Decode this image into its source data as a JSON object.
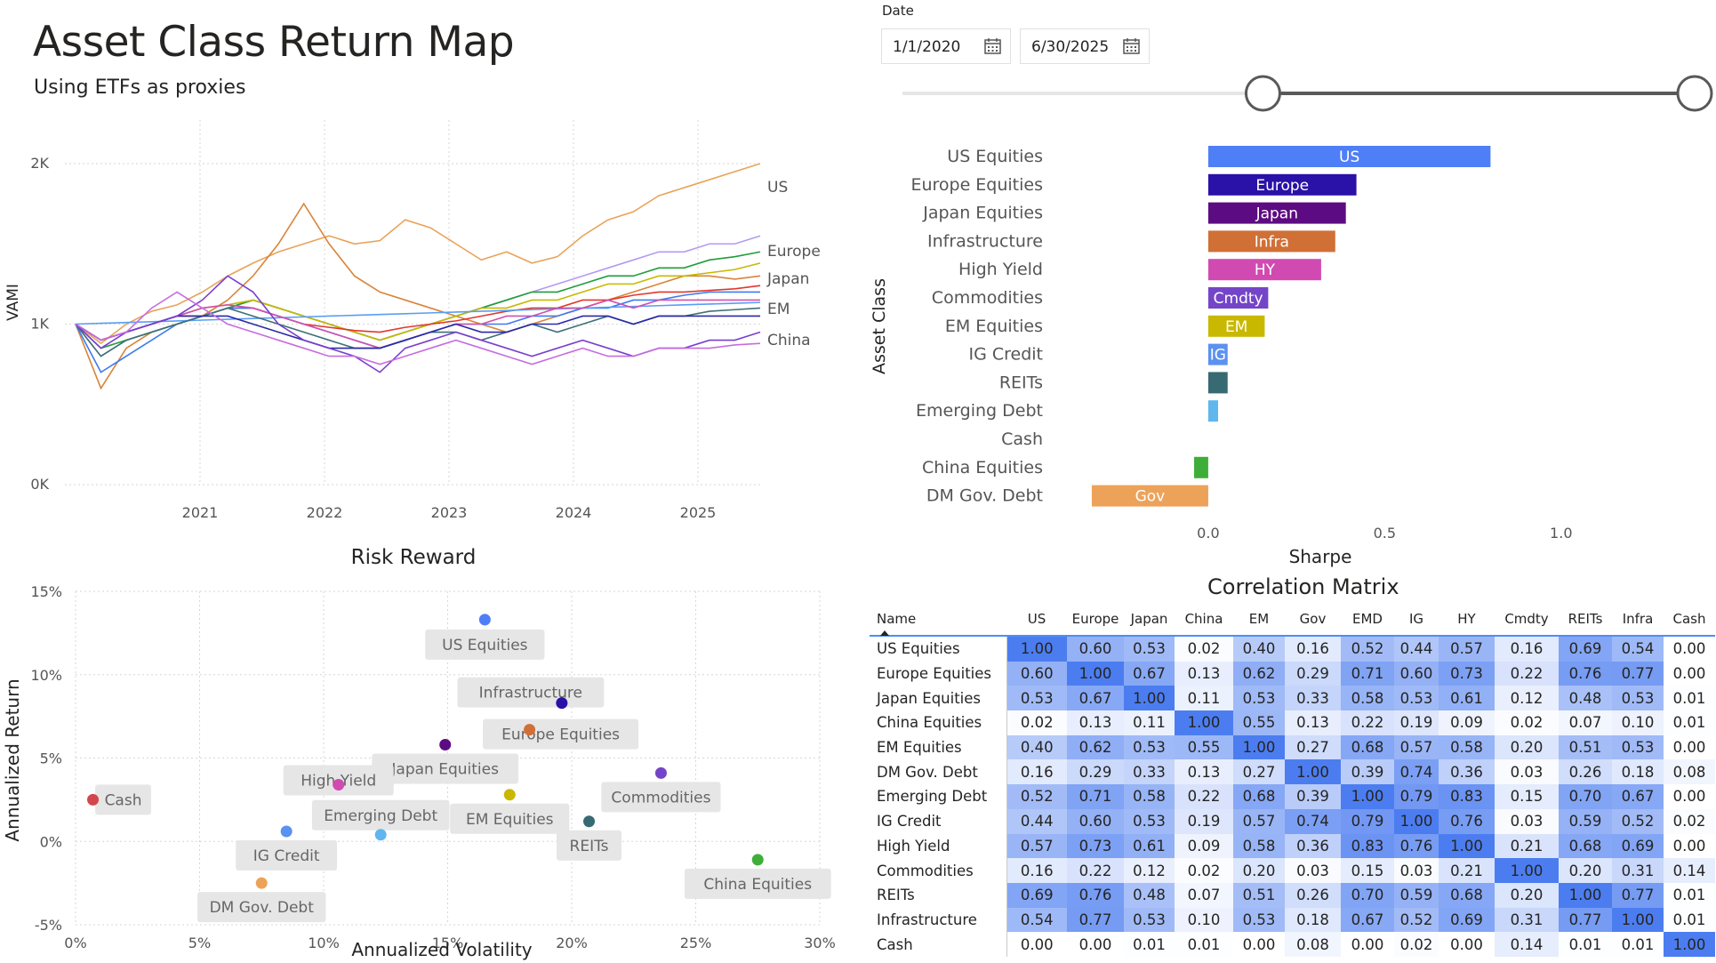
{
  "header": {
    "title": "Asset Class Return Map",
    "subtitle": "Using ETFs as proxies"
  },
  "date_filter": {
    "label": "Date",
    "start": "1/1/2020",
    "end": "6/30/2025",
    "icon": "calendar-icon",
    "slider_start_fraction": 0.45,
    "slider_end_fraction": 1.0
  },
  "vami_chart": {
    "type": "line",
    "ylabel": "VAMI",
    "yticks": [
      "0K",
      "1K",
      "2K"
    ],
    "xticks": [
      "2021",
      "2022",
      "2023",
      "2024",
      "2025"
    ],
    "ylim": [
      0,
      2000
    ],
    "x_range": [
      2020.0,
      2025.5
    ],
    "end_labels": [
      "US",
      "Europe",
      "Japan",
      "EM",
      "China"
    ],
    "series": [
      {
        "color": "#e8a45a",
        "values": [
          1000,
          880,
          1000,
          1080,
          1120,
          1200,
          1300,
          1380,
          1450,
          1500,
          1550,
          1500,
          1520,
          1650,
          1600,
          1500,
          1400,
          1450,
          1380,
          1420,
          1550,
          1650,
          1700,
          1800,
          1850,
          1900,
          1950,
          2000
        ]
      },
      {
        "color": "#d9843b",
        "values": [
          1000,
          600,
          850,
          950,
          1000,
          1050,
          1150,
          1300,
          1500,
          1750,
          1500,
          1300,
          1200,
          1150,
          1100,
          1050,
          1000,
          950,
          1000,
          1050,
          1100,
          1150,
          1200,
          1250,
          1300,
          1300,
          1280,
          1300
        ]
      },
      {
        "color": "#b49bf2",
        "values": [
          1000,
          800,
          900,
          950,
          1000,
          1050,
          1100,
          1150,
          1100,
          1050,
          1000,
          950,
          900,
          950,
          1000,
          1050,
          1100,
          1150,
          1200,
          1250,
          1300,
          1350,
          1400,
          1450,
          1450,
          1500,
          1500,
          1550
        ]
      },
      {
        "color": "#1f9e3a",
        "values": [
          1000,
          850,
          900,
          950,
          1000,
          1050,
          1100,
          1150,
          1100,
          1050,
          1000,
          950,
          900,
          950,
          1000,
          1050,
          1100,
          1150,
          1200,
          1200,
          1250,
          1300,
          1300,
          1350,
          1350,
          1400,
          1420,
          1450
        ]
      },
      {
        "color": "#c9b800",
        "values": [
          1000,
          900,
          950,
          1000,
          1050,
          1100,
          1120,
          1150,
          1100,
          1050,
          1000,
          950,
          900,
          950,
          1000,
          1050,
          1100,
          1100,
          1150,
          1150,
          1200,
          1250,
          1250,
          1300,
          1300,
          1320,
          1340,
          1380
        ]
      },
      {
        "color": "#e2372d",
        "values": [
          1000,
          900,
          950,
          1000,
          1050,
          1050,
          1100,
          1100,
          1050,
          1000,
          980,
          960,
          950,
          980,
          1000,
          1020,
          1050,
          1080,
          1100,
          1100,
          1150,
          1150,
          1180,
          1200,
          1200,
          1210,
          1220,
          1240
        ]
      },
      {
        "color": "#3e7af0",
        "values": [
          1000,
          700,
          800,
          900,
          1000,
          1050,
          1100,
          1100,
          1050,
          1000,
          950,
          900,
          850,
          900,
          950,
          1000,
          1000,
          1000,
          1050,
          1050,
          1100,
          1100,
          1150,
          1150,
          1180,
          1200,
          1200,
          1200
        ]
      },
      {
        "color": "#5a9df5",
        "values": [
          1000,
          1005,
          1010,
          1015,
          1020,
          1025,
          1030,
          1035,
          1040,
          1045,
          1050,
          1055,
          1060,
          1065,
          1070,
          1075,
          1080,
          1085,
          1090,
          1095,
          1100,
          1105,
          1110,
          1115,
          1120,
          1125,
          1130,
          1135
        ]
      },
      {
        "color": "#d24fb0",
        "values": [
          1000,
          900,
          950,
          1000,
          1050,
          1100,
          1120,
          1100,
          1050,
          1000,
          950,
          900,
          850,
          900,
          950,
          1000,
          1000,
          1050,
          1050,
          1100,
          1100,
          1150,
          1100,
          1150,
          1150,
          1150,
          1150,
          1150
        ]
      },
      {
        "color": "#3e6f75",
        "values": [
          1000,
          800,
          900,
          950,
          1000,
          1050,
          1100,
          1050,
          1000,
          950,
          900,
          850,
          850,
          900,
          950,
          950,
          900,
          950,
          1000,
          950,
          1000,
          1050,
          1000,
          1050,
          1050,
          1080,
          1090,
          1100
        ]
      },
      {
        "color": "#2a2aa8",
        "values": [
          1000,
          900,
          950,
          1000,
          1050,
          1050,
          1050,
          1000,
          950,
          900,
          850,
          850,
          850,
          900,
          950,
          1000,
          950,
          950,
          1000,
          1000,
          1050,
          1050,
          1000,
          1050,
          1050,
          1050,
          1050,
          1050
        ]
      },
      {
        "color": "#7a3fcf",
        "values": [
          1000,
          850,
          950,
          1000,
          1050,
          1150,
          1300,
          1200,
          1000,
          900,
          850,
          800,
          700,
          850,
          900,
          950,
          900,
          850,
          800,
          850,
          900,
          850,
          800,
          850,
          850,
          900,
          900,
          950
        ]
      },
      {
        "color": "#c66de0",
        "values": [
          1000,
          900,
          950,
          1100,
          1200,
          1100,
          1000,
          950,
          900,
          850,
          800,
          800,
          750,
          800,
          850,
          900,
          850,
          800,
          750,
          800,
          850,
          800,
          800,
          850,
          850,
          850,
          870,
          880
        ]
      }
    ]
  },
  "sharpe_chart": {
    "type": "bar",
    "ylabel": "Asset Class",
    "xlabel": "Sharpe",
    "xlim": [
      -0.35,
      1.25
    ],
    "xticks": [
      "0.0",
      "0.5",
      "1.0"
    ],
    "xtick_values": [
      0,
      0.5,
      1.0
    ],
    "bars": [
      {
        "category": "US Equities",
        "value": 0.8,
        "label": "US",
        "color": "#4f7ff7"
      },
      {
        "category": "Europe Equities",
        "value": 0.42,
        "label": "Europe",
        "color": "#2a11a8"
      },
      {
        "category": "Japan Equities",
        "value": 0.39,
        "label": "Japan",
        "color": "#5d0b82"
      },
      {
        "category": "Infrastructure",
        "value": 0.36,
        "label": "Infra",
        "color": "#d06f36"
      },
      {
        "category": "High Yield",
        "value": 0.32,
        "label": "HY",
        "color": "#d14ab2"
      },
      {
        "category": "Commodities",
        "value": 0.17,
        "label": "Cmdty",
        "color": "#7445c8"
      },
      {
        "category": "EM Equities",
        "value": 0.16,
        "label": "EM",
        "color": "#c9b800"
      },
      {
        "category": "IG Credit",
        "value": 0.055,
        "label": "IG",
        "color": "#5b91f0"
      },
      {
        "category": "REITs",
        "value": 0.055,
        "label": "",
        "color": "#376a72"
      },
      {
        "category": "Emerging Debt",
        "value": 0.028,
        "label": "",
        "color": "#5fb7ee"
      },
      {
        "category": "Cash",
        "value": 0.0,
        "label": "",
        "color": "#999999"
      },
      {
        "category": "China Equities",
        "value": -0.04,
        "label": "",
        "color": "#3fae38"
      },
      {
        "category": "DM Gov. Debt",
        "value": -0.33,
        "label": "Gov",
        "color": "#eda259"
      }
    ]
  },
  "risk_reward": {
    "type": "scatter",
    "title": "Risk Reward",
    "xlabel": "Annualized Volatility",
    "ylabel": "Annualized Return",
    "xlim": [
      0,
      30
    ],
    "ylim": [
      -5,
      15
    ],
    "xticks": [
      "0%",
      "5%",
      "10%",
      "15%",
      "20%",
      "25%",
      "30%"
    ],
    "yticks": [
      "-5%",
      "0%",
      "5%",
      "10%",
      "15%"
    ],
    "points": [
      {
        "name": "US Equities",
        "x": 16.5,
        "y": 13.3,
        "color": "#4f7ff7"
      },
      {
        "name": "Infrastructure",
        "x": 19.6,
        "y": 8.3,
        "color": "#2a11a8"
      },
      {
        "name": "Europe Equities",
        "x": 18.3,
        "y": 6.7,
        "color": "#d06f36"
      },
      {
        "name": "Japan Equities",
        "x": 14.9,
        "y": 5.8,
        "color": "#5d0b82"
      },
      {
        "name": "High Yield",
        "x": 10.6,
        "y": 3.4,
        "color": "#d14ab2"
      },
      {
        "name": "Commodities",
        "x": 23.6,
        "y": 4.1,
        "color": "#7445c8"
      },
      {
        "name": "Cash",
        "x": 0.7,
        "y": 2.5,
        "color": "#d3464c"
      },
      {
        "name": "EM Equities",
        "x": 17.5,
        "y": 2.8,
        "color": "#c9b800"
      },
      {
        "name": "Emerging Debt",
        "x": 12.3,
        "y": 0.4,
        "color": "#5fb7ee"
      },
      {
        "name": "IG Credit",
        "x": 8.5,
        "y": 0.6,
        "color": "#5b91f0"
      },
      {
        "name": "REITs",
        "x": 20.7,
        "y": 1.2,
        "color": "#376a72"
      },
      {
        "name": "China Equities",
        "x": 27.5,
        "y": -1.1,
        "color": "#3fae38"
      },
      {
        "name": "DM Gov. Debt",
        "x": 7.5,
        "y": -2.5,
        "color": "#eda259"
      }
    ]
  },
  "correlation": {
    "type": "table",
    "title": "Correlation Matrix",
    "name_header": "Name",
    "columns": [
      "US",
      "Europe",
      "Japan",
      "China",
      "EM",
      "Gov",
      "EMD",
      "IG",
      "HY",
      "Cmdty",
      "REITs",
      "Infra",
      "Cash"
    ],
    "rows": [
      {
        "name": "US Equities",
        "values": [
          "1.00",
          "0.60",
          "0.53",
          "0.02",
          "0.40",
          "0.16",
          "0.52",
          "0.44",
          "0.57",
          "0.16",
          "0.69",
          "0.54",
          "0.00"
        ]
      },
      {
        "name": "Europe Equities",
        "values": [
          "0.60",
          "1.00",
          "0.67",
          "0.13",
          "0.62",
          "0.29",
          "0.71",
          "0.60",
          "0.73",
          "0.22",
          "0.76",
          "0.77",
          "0.00"
        ]
      },
      {
        "name": "Japan Equities",
        "values": [
          "0.53",
          "0.67",
          "1.00",
          "0.11",
          "0.53",
          "0.33",
          "0.58",
          "0.53",
          "0.61",
          "0.12",
          "0.48",
          "0.53",
          "0.01"
        ]
      },
      {
        "name": "China Equities",
        "values": [
          "0.02",
          "0.13",
          "0.11",
          "1.00",
          "0.55",
          "0.13",
          "0.22",
          "0.19",
          "0.09",
          "0.02",
          "0.07",
          "0.10",
          "0.01"
        ]
      },
      {
        "name": "EM Equities",
        "values": [
          "0.40",
          "0.62",
          "0.53",
          "0.55",
          "1.00",
          "0.27",
          "0.68",
          "0.57",
          "0.58",
          "0.20",
          "0.51",
          "0.53",
          "0.00"
        ]
      },
      {
        "name": "DM Gov. Debt",
        "values": [
          "0.16",
          "0.29",
          "0.33",
          "0.13",
          "0.27",
          "1.00",
          "0.39",
          "0.74",
          "0.36",
          "0.03",
          "0.26",
          "0.18",
          "0.08"
        ]
      },
      {
        "name": "Emerging Debt",
        "values": [
          "0.52",
          "0.71",
          "0.58",
          "0.22",
          "0.68",
          "0.39",
          "1.00",
          "0.79",
          "0.83",
          "0.15",
          "0.70",
          "0.67",
          "0.00"
        ]
      },
      {
        "name": "IG Credit",
        "values": [
          "0.44",
          "0.60",
          "0.53",
          "0.19",
          "0.57",
          "0.74",
          "0.79",
          "1.00",
          "0.76",
          "0.03",
          "0.59",
          "0.52",
          "0.02"
        ]
      },
      {
        "name": "High Yield",
        "values": [
          "0.57",
          "0.73",
          "0.61",
          "0.09",
          "0.58",
          "0.36",
          "0.83",
          "0.76",
          "1.00",
          "0.21",
          "0.68",
          "0.69",
          "0.00"
        ]
      },
      {
        "name": "Commodities",
        "values": [
          "0.16",
          "0.22",
          "0.12",
          "0.02",
          "0.20",
          "0.03",
          "0.15",
          "0.03",
          "0.21",
          "1.00",
          "0.20",
          "0.31",
          "0.14"
        ]
      },
      {
        "name": "REITs",
        "values": [
          "0.69",
          "0.76",
          "0.48",
          "0.07",
          "0.51",
          "0.26",
          "0.70",
          "0.59",
          "0.68",
          "0.20",
          "1.00",
          "0.77",
          "0.01"
        ]
      },
      {
        "name": "Infrastructure",
        "values": [
          "0.54",
          "0.77",
          "0.53",
          "0.10",
          "0.53",
          "0.18",
          "0.67",
          "0.52",
          "0.69",
          "0.31",
          "0.77",
          "1.00",
          "0.01"
        ]
      },
      {
        "name": "Cash",
        "values": [
          "0.00",
          "0.00",
          "0.01",
          "0.01",
          "0.00",
          "0.08",
          "0.00",
          "0.02",
          "0.00",
          "0.14",
          "0.01",
          "0.01",
          "1.00"
        ]
      }
    ]
  }
}
